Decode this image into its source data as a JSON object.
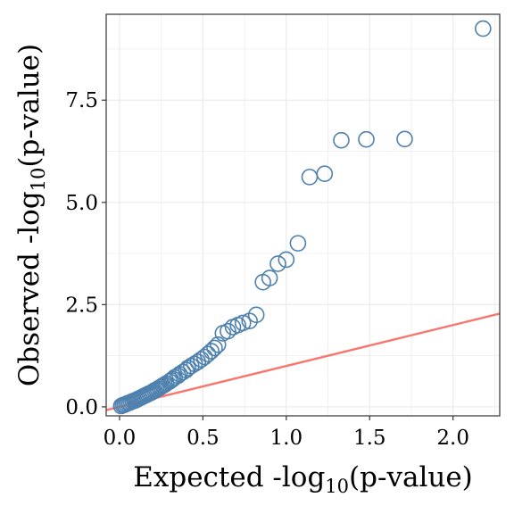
{
  "chart_data": {
    "type": "scatter",
    "title": "",
    "xlabel": {
      "prefix": "Expected -log",
      "sub": "10",
      "suffix": "(p-value)"
    },
    "ylabel": {
      "prefix": "Observed -log",
      "sub": "10",
      "suffix": "(p-value)"
    },
    "xlim": [
      -0.08,
      2.28
    ],
    "ylim": [
      -0.22,
      9.6
    ],
    "x_ticks": [
      0.0,
      0.5,
      1.0,
      1.5,
      2.0
    ],
    "x_tick_labels": [
      "0.0",
      "0.5",
      "1.0",
      "1.5",
      "2.0"
    ],
    "y_ticks": [
      0.0,
      2.5,
      5.0,
      7.5
    ],
    "y_tick_labels": [
      "0.0",
      "2.5",
      "5.0",
      "7.5"
    ],
    "grid": true,
    "reference_line": {
      "slope": 1,
      "intercept": 0,
      "color": "#F8766D"
    },
    "point_color": "#4F81AE",
    "points": [
      [
        0.01,
        0.02
      ],
      [
        0.02,
        0.04
      ],
      [
        0.03,
        0.05
      ],
      [
        0.04,
        0.07
      ],
      [
        0.05,
        0.09
      ],
      [
        0.06,
        0.1
      ],
      [
        0.07,
        0.12
      ],
      [
        0.08,
        0.14
      ],
      [
        0.09,
        0.15
      ],
      [
        0.1,
        0.17
      ],
      [
        0.11,
        0.19
      ],
      [
        0.12,
        0.21
      ],
      [
        0.13,
        0.23
      ],
      [
        0.14,
        0.25
      ],
      [
        0.15,
        0.27
      ],
      [
        0.16,
        0.29
      ],
      [
        0.17,
        0.31
      ],
      [
        0.18,
        0.33
      ],
      [
        0.19,
        0.35
      ],
      [
        0.2,
        0.37
      ],
      [
        0.21,
        0.4
      ],
      [
        0.22,
        0.42
      ],
      [
        0.23,
        0.44
      ],
      [
        0.24,
        0.47
      ],
      [
        0.25,
        0.49
      ],
      [
        0.26,
        0.52
      ],
      [
        0.27,
        0.54
      ],
      [
        0.28,
        0.57
      ],
      [
        0.3,
        0.62
      ],
      [
        0.31,
        0.65
      ],
      [
        0.32,
        0.68
      ],
      [
        0.33,
        0.72
      ],
      [
        0.35,
        0.76
      ],
      [
        0.36,
        0.8
      ],
      [
        0.38,
        0.85
      ],
      [
        0.4,
        0.9
      ],
      [
        0.41,
        0.95
      ],
      [
        0.43,
        1.0
      ],
      [
        0.45,
        1.05
      ],
      [
        0.47,
        1.1
      ],
      [
        0.49,
        1.16
      ],
      [
        0.51,
        1.22
      ],
      [
        0.53,
        1.29
      ],
      [
        0.55,
        1.36
      ],
      [
        0.57,
        1.44
      ],
      [
        0.59,
        1.52
      ],
      [
        0.62,
        1.8
      ],
      [
        0.65,
        1.85
      ],
      [
        0.68,
        1.95
      ],
      [
        0.71,
        2.0
      ],
      [
        0.74,
        2.05
      ],
      [
        0.78,
        2.1
      ],
      [
        0.82,
        2.25
      ],
      [
        0.86,
        3.05
      ],
      [
        0.9,
        3.15
      ],
      [
        0.95,
        3.5
      ],
      [
        1.0,
        3.6
      ],
      [
        1.07,
        4.0
      ],
      [
        1.14,
        5.62
      ],
      [
        1.23,
        5.7
      ],
      [
        1.33,
        6.52
      ],
      [
        1.48,
        6.54
      ],
      [
        1.71,
        6.55
      ],
      [
        2.18,
        9.25
      ]
    ]
  }
}
